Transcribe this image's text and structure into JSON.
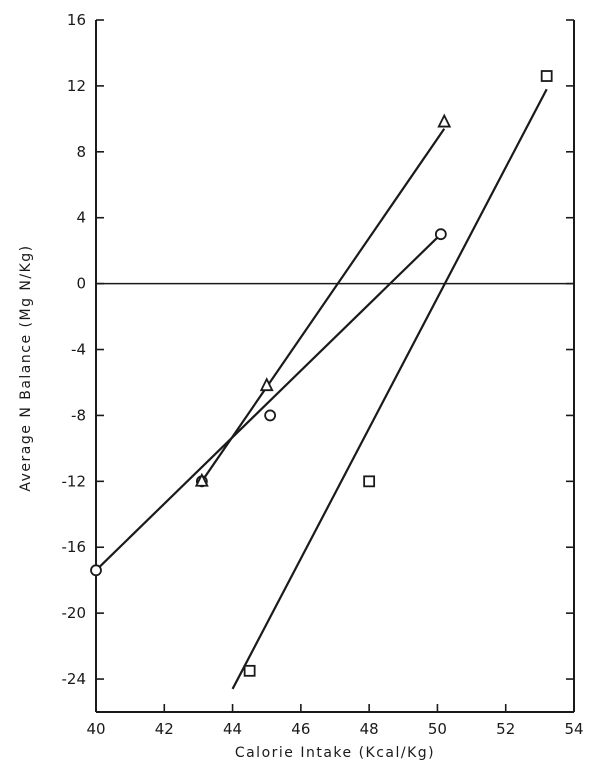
{
  "chart_data": {
    "type": "scatter",
    "title": "",
    "xlabel": "Calorie Intake (Kcal/Kg)",
    "ylabel": "Average N Balance (Mg N/Kg)",
    "xlim": [
      40,
      54
    ],
    "ylim": [
      -26,
      16
    ],
    "xticks": [
      40,
      42,
      44,
      46,
      48,
      50,
      52,
      54
    ],
    "yticks": [
      16,
      12,
      8,
      4,
      0,
      -4,
      -8,
      -12,
      -16,
      -20,
      -24
    ],
    "xtick_labels": [
      "40",
      "42",
      "44",
      "46",
      "48",
      "50",
      "52",
      "54"
    ],
    "ytick_labels": [
      "16",
      "12",
      "8",
      "4",
      "0",
      "-4",
      "-8",
      "-12",
      "-16",
      "-20",
      "-24"
    ],
    "reference_line_y": 0,
    "grid": false,
    "series": [
      {
        "marker": "circle",
        "points": [
          [
            40.0,
            -17.4
          ],
          [
            43.1,
            -12.0
          ],
          [
            45.1,
            -8.0
          ],
          [
            50.1,
            3.0
          ]
        ],
        "fit_line": [
          [
            40.0,
            -17.4
          ],
          [
            50.1,
            3.0
          ]
        ]
      },
      {
        "marker": "triangle",
        "points": [
          [
            43.1,
            -12.0
          ],
          [
            45.0,
            -6.2
          ],
          [
            50.2,
            9.8
          ]
        ],
        "fit_line": [
          [
            43.1,
            -12.0
          ],
          [
            50.2,
            9.4
          ]
        ]
      },
      {
        "marker": "square",
        "points": [
          [
            44.5,
            -23.5
          ],
          [
            48.0,
            -12.0
          ],
          [
            53.2,
            12.6
          ]
        ],
        "fit_line": [
          [
            44.0,
            -24.6
          ],
          [
            53.2,
            11.8
          ]
        ]
      }
    ]
  }
}
